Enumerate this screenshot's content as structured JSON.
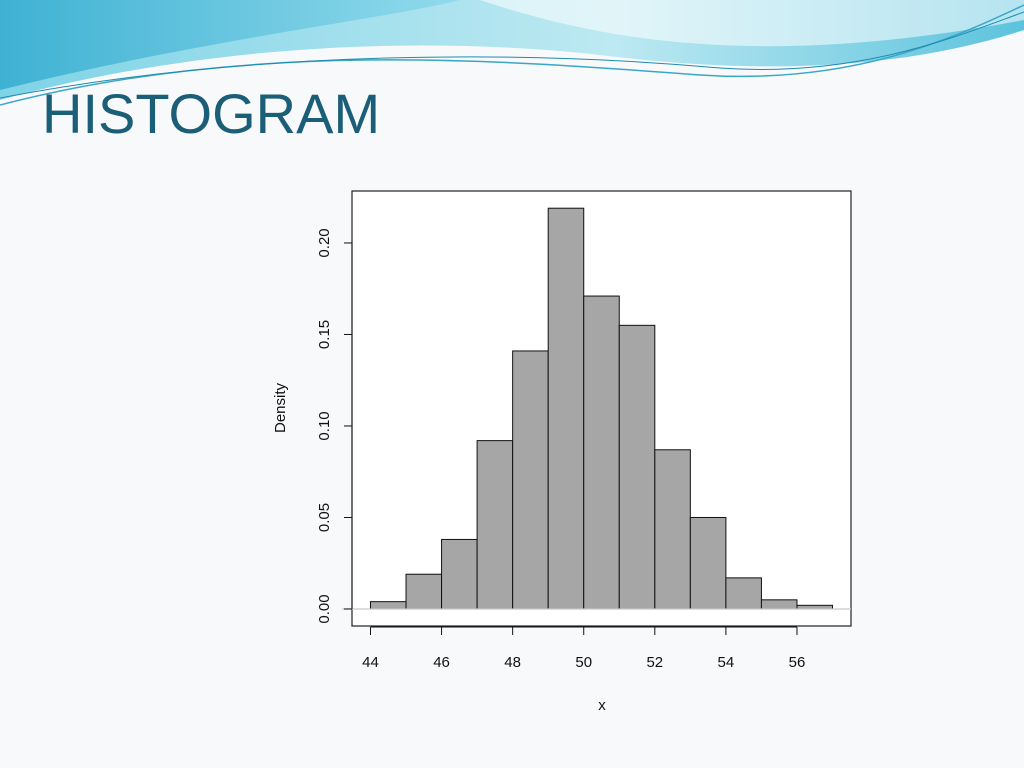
{
  "chart_data": {
    "type": "histogram",
    "title": "HISTOGRAM",
    "x_label": "x",
    "y_label": "Density",
    "bins": [
      44,
      45,
      46,
      47,
      48,
      49,
      50,
      51,
      52,
      53,
      54,
      55,
      56,
      57
    ],
    "values": [
      0.004,
      0.019,
      0.038,
      0.092,
      0.141,
      0.219,
      0.171,
      0.155,
      0.087,
      0.05,
      0.017,
      0.005,
      0.002
    ],
    "color": "#a6a6a6",
    "xlim": [
      43.48,
      57.52
    ],
    "ylim": [
      -0.0093,
      0.2284
    ],
    "xticks": [
      44,
      46,
      48,
      50,
      52,
      54,
      56
    ],
    "yticks": [
      {
        "value": 0,
        "label": "0.00"
      },
      0.05,
      {
        "value": 0.1,
        "label": "0.10"
      },
      0.15,
      {
        "value": 0.2,
        "label": "0.20"
      }
    ]
  }
}
